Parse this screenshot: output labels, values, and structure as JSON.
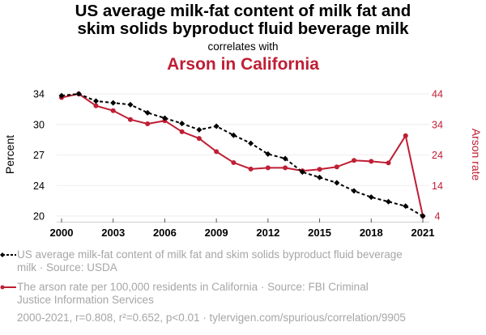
{
  "header": {
    "title_line1": "US average milk-fat content of milk fat and",
    "title_line2": "skim solids byproduct fluid beverage milk",
    "subtitle": "correlates with",
    "title2": "Arson in California"
  },
  "colors": {
    "series1": "#000000",
    "series2": "#bf1e34",
    "gridline": "#eeeeee",
    "muted_text": "#a6a6a6"
  },
  "chart_data": {
    "type": "line",
    "title": "US average milk-fat content of milk fat and skim solids byproduct fluid beverage milk correlates with Arson in California",
    "xlabel": "",
    "ylabel": "Percent",
    "y2label": "Arson rate",
    "x": [
      2000,
      2001,
      2002,
      2003,
      2004,
      2005,
      2006,
      2007,
      2008,
      2009,
      2010,
      2011,
      2012,
      2013,
      2014,
      2015,
      2016,
      2017,
      2018,
      2019,
      2020,
      2021
    ],
    "x_ticks": [
      "2000",
      "2003",
      "2006",
      "2009",
      "2012",
      "2015",
      "2018",
      "2021"
    ],
    "x_tick_values": [
      2000,
      2003,
      2006,
      2009,
      2012,
      2015,
      2018,
      2021
    ],
    "xlim": [
      2000,
      2021
    ],
    "ylim": [
      20.2,
      33.8
    ],
    "y_ticks": [
      "34",
      "30",
      "27",
      "24",
      "20"
    ],
    "y2lim": [
      4,
      44
    ],
    "y2_ticks": [
      "44",
      "34",
      "24",
      "14",
      "4"
    ],
    "grid": true,
    "series": [
      {
        "name": "US average milk-fat content of milk fat and skim solids byproduct fluid beverage milk",
        "axis": "left",
        "style": "dashed-diamond",
        "values": [
          33.6,
          33.8,
          33.0,
          32.8,
          32.6,
          31.7,
          31.1,
          30.5,
          29.8,
          30.2,
          29.2,
          28.3,
          27.1,
          26.6,
          25.1,
          24.5,
          23.9,
          23.0,
          22.3,
          21.8,
          21.3,
          20.2
        ]
      },
      {
        "name": "The arson rate per 100,000 residents in California",
        "axis": "right",
        "style": "solid-circle",
        "values": [
          42.8,
          44.0,
          40.1,
          38.5,
          35.6,
          34.2,
          35.2,
          31.6,
          29.4,
          25.1,
          21.5,
          19.4,
          19.8,
          19.8,
          18.8,
          19.3,
          20.1,
          22.2,
          21.9,
          21.4,
          30.3,
          4.0
        ]
      }
    ]
  },
  "legend": {
    "item1_line1": "US average milk-fat content of milk fat and skim solids byproduct fluid beverage",
    "item1_line2": "milk · Source: USDA",
    "item2_line1": "The arson rate per 100,000 residents in California · Source: FBI Criminal",
    "item2_line2": "Justice Information Services"
  },
  "footer": {
    "stats": "2000-2021, r=0.808, r²=0.652, p<0.01 · tylervigen.com/spurious/correlation/9905"
  }
}
